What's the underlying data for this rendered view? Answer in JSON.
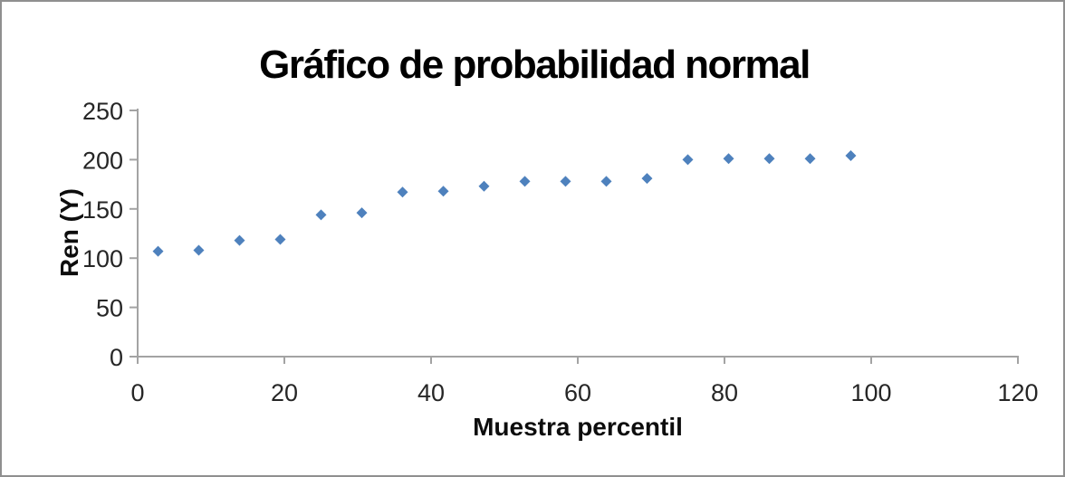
{
  "window": {
    "background": "#ffffff",
    "border_color": "#8f8f8f"
  },
  "chart_data": {
    "type": "scatter",
    "title": "Gráfico de probabilidad normal",
    "xlabel": "Muestra percentil",
    "ylabel": "Ren (Y)",
    "xlim": [
      0,
      120
    ],
    "ylim": [
      0,
      250
    ],
    "x_ticks": [
      0,
      20,
      40,
      60,
      80,
      100,
      120
    ],
    "y_ticks": [
      0,
      50,
      100,
      150,
      200,
      250
    ],
    "grid": false,
    "legend": "none",
    "marker": "diamond",
    "marker_size": 12,
    "colors": {
      "marker": "#4e81bd",
      "axis": "#a3a3a3",
      "tick_label": "#262626",
      "title": "#000000"
    },
    "series": [
      {
        "name": "Ren (Y)",
        "points": [
          [
            2.78,
            107
          ],
          [
            8.33,
            108
          ],
          [
            13.89,
            118
          ],
          [
            19.44,
            119
          ],
          [
            25.0,
            144
          ],
          [
            30.56,
            146
          ],
          [
            36.11,
            167
          ],
          [
            41.67,
            168
          ],
          [
            47.22,
            173
          ],
          [
            52.78,
            178
          ],
          [
            58.33,
            178
          ],
          [
            63.89,
            178
          ],
          [
            69.44,
            181
          ],
          [
            75.0,
            200
          ],
          [
            80.56,
            201
          ],
          [
            86.11,
            201
          ],
          [
            91.67,
            201
          ],
          [
            97.22,
            204
          ]
        ]
      }
    ]
  }
}
